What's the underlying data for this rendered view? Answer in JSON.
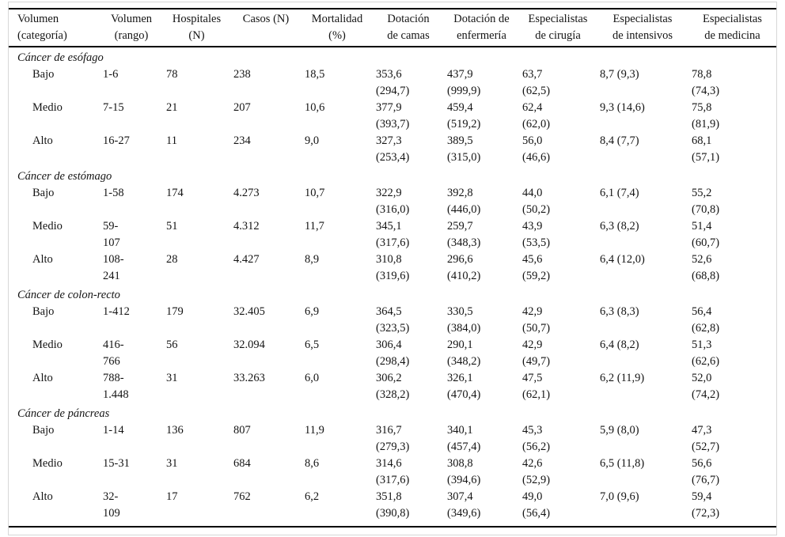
{
  "table": {
    "columns": [
      {
        "lines": [
          "Volumen",
          "(categoría)"
        ]
      },
      {
        "lines": [
          "Volumen",
          "(rango)"
        ]
      },
      {
        "lines": [
          "Hospitales",
          "(N)"
        ]
      },
      {
        "lines": [
          "Casos (N)"
        ]
      },
      {
        "lines": [
          "Mortalidad",
          "(%)"
        ]
      },
      {
        "lines": [
          "Dotación",
          "de camas"
        ]
      },
      {
        "lines": [
          "Dotación de",
          "enfermería"
        ]
      },
      {
        "lines": [
          "Especialistas",
          "de cirugía"
        ]
      },
      {
        "lines": [
          "Especialistas",
          "de intensivos"
        ]
      },
      {
        "lines": [
          "Especialistas",
          "de medicina"
        ]
      }
    ],
    "sections": [
      {
        "title": "Cáncer de esófago",
        "rows": [
          {
            "cells": [
              [
                "Bajo"
              ],
              [
                "1-6"
              ],
              [
                "78"
              ],
              [
                "238"
              ],
              [
                "18,5"
              ],
              [
                "353,6",
                "(294,7)"
              ],
              [
                "437,9",
                "(999,9)"
              ],
              [
                "63,7",
                "(62,5)"
              ],
              [
                "8,7 (9,3)"
              ],
              [
                "78,8",
                "(74,3)"
              ]
            ]
          },
          {
            "cells": [
              [
                "Medio"
              ],
              [
                "7-15"
              ],
              [
                "21"
              ],
              [
                "207"
              ],
              [
                "10,6"
              ],
              [
                "377,9",
                "(393,7)"
              ],
              [
                "459,4",
                "(519,2)"
              ],
              [
                "62,4",
                "(62,0)"
              ],
              [
                "9,3 (14,6)"
              ],
              [
                "75,8",
                "(81,9)"
              ]
            ]
          },
          {
            "cells": [
              [
                "Alto"
              ],
              [
                "16-27"
              ],
              [
                "11"
              ],
              [
                "234"
              ],
              [
                "9,0"
              ],
              [
                "327,3",
                "(253,4)"
              ],
              [
                "389,5",
                "(315,0)"
              ],
              [
                "56,0",
                "(46,6)"
              ],
              [
                "8,4 (7,7)"
              ],
              [
                "68,1",
                "(57,1)"
              ]
            ]
          }
        ]
      },
      {
        "title": "Cáncer de estómago",
        "rows": [
          {
            "cells": [
              [
                "Bajo"
              ],
              [
                "1-58"
              ],
              [
                "174"
              ],
              [
                "4.273"
              ],
              [
                "10,7"
              ],
              [
                "322,9",
                "(316,0)"
              ],
              [
                "392,8",
                "(446,0)"
              ],
              [
                "44,0",
                "(50,2)"
              ],
              [
                "6,1 (7,4)"
              ],
              [
                "55,2",
                "(70,8)"
              ]
            ]
          },
          {
            "cells": [
              [
                "Medio"
              ],
              [
                "59-",
                "107"
              ],
              [
                "51"
              ],
              [
                "4.312"
              ],
              [
                "11,7"
              ],
              [
                "345,1",
                "(317,6)"
              ],
              [
                "259,7",
                "(348,3)"
              ],
              [
                "43,9",
                "(53,5)"
              ],
              [
                "6,3 (8,2)"
              ],
              [
                "51,4",
                "(60,7)"
              ]
            ]
          },
          {
            "cells": [
              [
                "Alto"
              ],
              [
                "108-",
                "241"
              ],
              [
                "28"
              ],
              [
                "4.427"
              ],
              [
                "8,9"
              ],
              [
                "310,8",
                "(319,6)"
              ],
              [
                "296,6",
                "(410,2)"
              ],
              [
                "45,6",
                "(59,2)"
              ],
              [
                "6,4 (12,0)"
              ],
              [
                "52,6",
                "(68,8)"
              ]
            ]
          }
        ]
      },
      {
        "title": "Cáncer de colon-recto",
        "rows": [
          {
            "cells": [
              [
                "Bajo"
              ],
              [
                "1-412"
              ],
              [
                "179"
              ],
              [
                "32.405"
              ],
              [
                "6,9"
              ],
              [
                "364,5",
                "(323,5)"
              ],
              [
                "330,5",
                "(384,0)"
              ],
              [
                "42,9",
                "(50,7)"
              ],
              [
                "6,3 (8,3)"
              ],
              [
                "56,4",
                "(62,8)"
              ]
            ]
          },
          {
            "cells": [
              [
                "Medio"
              ],
              [
                "416-",
                "766"
              ],
              [
                "56"
              ],
              [
                "32.094"
              ],
              [
                "6,5"
              ],
              [
                "306,4",
                "(298,4)"
              ],
              [
                "290,1",
                "(348,2)"
              ],
              [
                "42,9",
                "(49,7)"
              ],
              [
                "6,4 (8,2)"
              ],
              [
                "51,3",
                "(62,6)"
              ]
            ]
          },
          {
            "cells": [
              [
                "Alto"
              ],
              [
                "788-",
                "1.448"
              ],
              [
                "31"
              ],
              [
                "33.263"
              ],
              [
                "6,0"
              ],
              [
                "306,2",
                "(328,2)"
              ],
              [
                "326,1",
                "(470,4)"
              ],
              [
                "47,5",
                "(62,1)"
              ],
              [
                "6,2 (11,9)"
              ],
              [
                "52,0",
                "(74,2)"
              ]
            ]
          }
        ]
      },
      {
        "title": "Cáncer de páncreas",
        "rows": [
          {
            "cells": [
              [
                "Bajo"
              ],
              [
                "1-14"
              ],
              [
                "136"
              ],
              [
                "807"
              ],
              [
                "11,9"
              ],
              [
                "316,7",
                "(279,3)"
              ],
              [
                "340,1",
                "(457,4)"
              ],
              [
                "45,3",
                "(56,2)"
              ],
              [
                "5,9 (8,0)"
              ],
              [
                "47,3",
                "(52,7)"
              ]
            ]
          },
          {
            "cells": [
              [
                "Medio"
              ],
              [
                "15-31"
              ],
              [
                "31"
              ],
              [
                "684"
              ],
              [
                "8,6"
              ],
              [
                "314,6",
                "(317,6)"
              ],
              [
                "308,8",
                "(394,6)"
              ],
              [
                "42,6",
                "(52,9)"
              ],
              [
                "6,5 (11,8)"
              ],
              [
                "56,6",
                "(76,7)"
              ]
            ]
          },
          {
            "cells": [
              [
                "Alto"
              ],
              [
                "32-",
                "109"
              ],
              [
                "17"
              ],
              [
                "762"
              ],
              [
                "6,2"
              ],
              [
                "351,8",
                "(390,8)"
              ],
              [
                "307,4",
                "(349,6)"
              ],
              [
                "49,0",
                "(56,4)"
              ],
              [
                "7,0 (9,6)"
              ],
              [
                "59,4",
                "(72,3)"
              ]
            ]
          }
        ]
      }
    ]
  }
}
